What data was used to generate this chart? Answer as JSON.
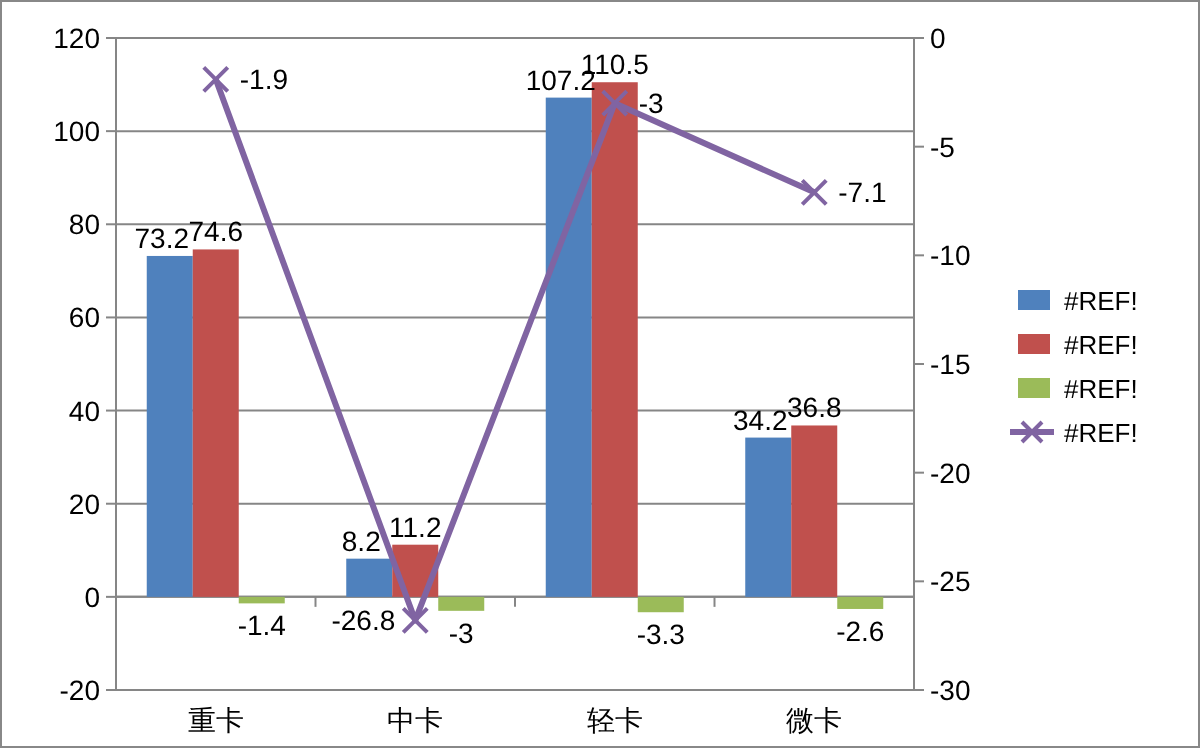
{
  "chart_data": {
    "type": "bar",
    "categories": [
      "重卡",
      "中卡",
      "轻卡",
      "微卡"
    ],
    "series": [
      {
        "name": "#REF!",
        "color": "#4f81bd",
        "values": [
          73.2,
          8.2,
          107.2,
          34.2
        ]
      },
      {
        "name": "#REF!",
        "color": "#c0504d",
        "values": [
          74.6,
          11.2,
          110.5,
          36.8
        ]
      },
      {
        "name": "#REF!",
        "color": "#9bbb59",
        "values": [
          -1.4,
          -3,
          -3.3,
          -2.6
        ]
      },
      {
        "name": "#REF!",
        "color": "#8064a2",
        "type": "line",
        "axis": "y2",
        "marker": "cross",
        "values": [
          -1.9,
          -26.8,
          -3,
          -7.1
        ]
      }
    ],
    "ylim": [
      -20,
      120
    ],
    "yticks": [
      -20,
      0,
      20,
      40,
      60,
      80,
      100,
      120
    ],
    "y2lim": [
      -30,
      0
    ],
    "y2ticks": [
      -30,
      -25,
      -20,
      -15,
      -10,
      -5,
      0
    ],
    "grid": "y",
    "legend": "right",
    "data_labels": true
  }
}
